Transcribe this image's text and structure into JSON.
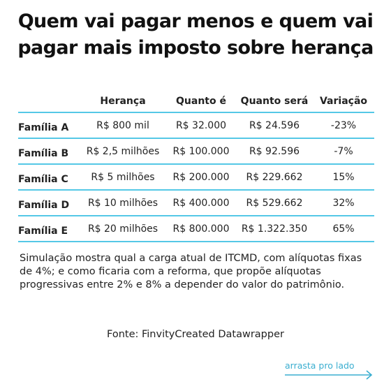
{
  "title_line1": "Quem vai pagar menos e quem vai",
  "title_line2": "pagar mais imposto sobre herança",
  "table": {
    "headers": [
      "",
      "Herança",
      "Quanto é",
      "Quanto será",
      "Variação"
    ],
    "rows": [
      {
        "label": "Família A",
        "heranca": "R$ 800 mil",
        "quanto_e": "R$ 32.000",
        "quanto_sera": "R$ 24.596",
        "variacao": "-23%"
      },
      {
        "label": "Família B",
        "heranca": "R$ 2,5 milhões",
        "quanto_e": "R$ 100.000",
        "quanto_sera": "R$ 92.596",
        "variacao": "-7%"
      },
      {
        "label": "Família C",
        "heranca": "R$ 5 milhões",
        "quanto_e": "R$ 200.000",
        "quanto_sera": "R$ 229.662",
        "variacao": "15%"
      },
      {
        "label": "Família D",
        "heranca": "R$ 10 milhões",
        "quanto_e": "R$ 400.000",
        "quanto_sera": "R$ 529.662",
        "variacao": "32%"
      },
      {
        "label": "Família E",
        "heranca": "R$ 20 milhões",
        "quanto_e": "R$ 800.000",
        "quanto_sera": "R$ 1.322.350",
        "variacao": "65%"
      }
    ]
  },
  "note_line1": "Simulação mostra qual a carga atual de ITCMD, com alíquotas fixas",
  "note_line2": "de 4%; e como ficaria com a reforma, que propõe alíquotas",
  "note_line3": "progressivas entre 2% e 8% a depender do valor do patrimônio.",
  "source": "Fonte: FinvityCreated Datawrapper",
  "swipe_hint": "arrasta pro lado",
  "colors": {
    "accent": "#54c8e6",
    "swipe": "#3aaed0"
  },
  "icons": {
    "swipe_arrow": "arrow-right-icon"
  }
}
